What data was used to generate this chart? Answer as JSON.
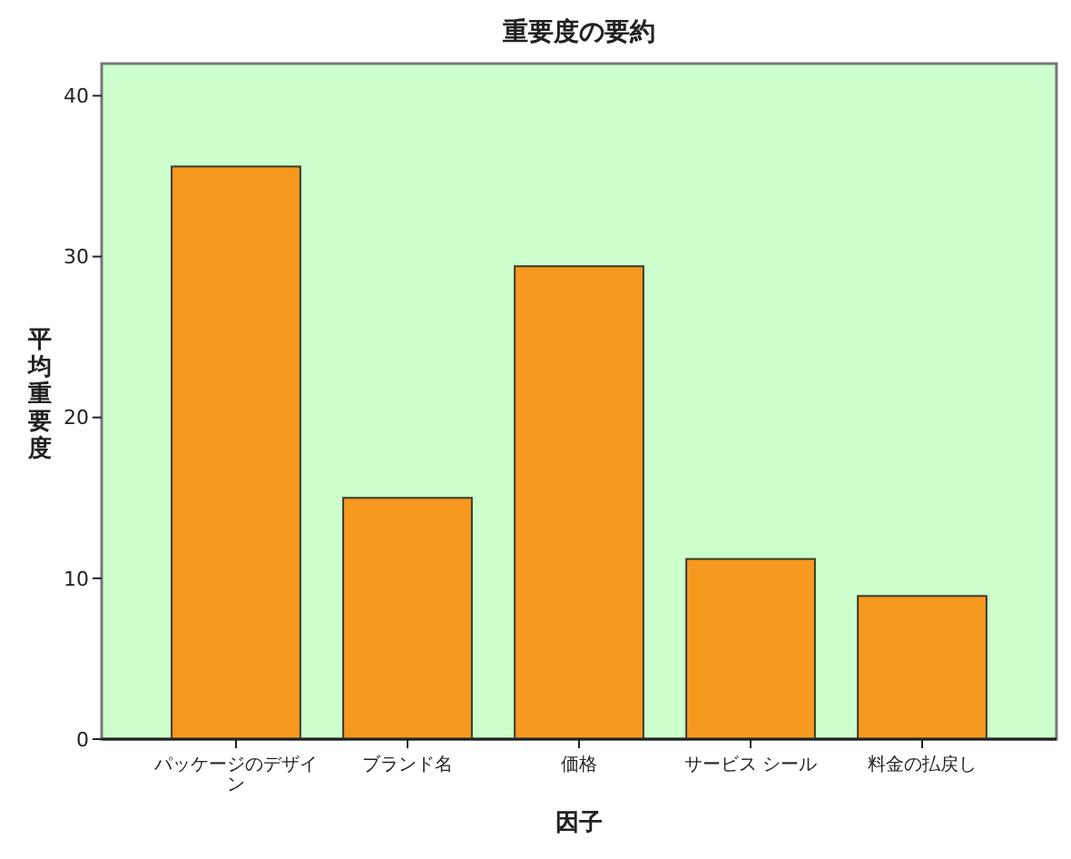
{
  "chart_data": {
    "type": "bar",
    "title": "重要度の要約",
    "xlabel": "因子",
    "ylabel": "平均重要度",
    "categories": [
      "パッケージのデザイン",
      "ブランド名",
      "価格",
      "サービス シール",
      "料金の払戻し"
    ],
    "values": [
      35.6,
      15.0,
      29.4,
      11.2,
      8.9
    ],
    "color": "#f7991f",
    "ylim": [
      0,
      42
    ],
    "yticks": [
      0,
      10,
      20,
      30,
      40
    ]
  }
}
